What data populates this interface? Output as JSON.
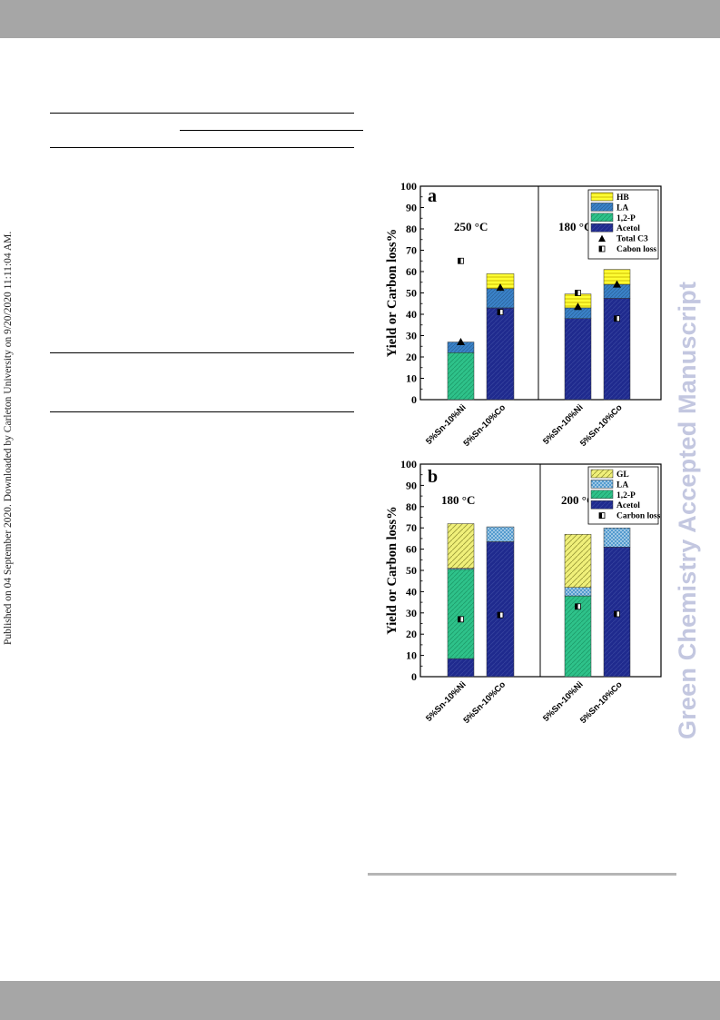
{
  "side_text": {
    "published": "Published on 04 September 2020. Downloaded by Carleton University on 9/20/2020 11:11:04 AM.",
    "watermark": "Green Chemistry Accepted Manuscript"
  },
  "colors": {
    "HB": "#ffff33",
    "LA": "#3a82c8",
    "12P": "#2ec28a",
    "Acetol": "#1f2a8e",
    "GL": "#f0f07a",
    "band": "#a6a6a6",
    "watermark": "#c3c7e0"
  },
  "chart_data": [
    {
      "type": "bar",
      "panel_label": "a",
      "ylabel": "Yield or Carbon loss%",
      "ylim": [
        0,
        100
      ],
      "yticks": [
        "0",
        "10",
        "20",
        "30",
        "40",
        "50",
        "60",
        "70",
        "80",
        "90",
        "100"
      ],
      "stacked": true,
      "groups": [
        {
          "temperature": "250 °C",
          "categories": [
            "5%Sn-10%Ni",
            "5%Sn-10%Co"
          ],
          "series": [
            {
              "name": "Acetol",
              "values": [
                0,
                43
              ]
            },
            {
              "name": "1,2-P",
              "values": [
                22,
                0
              ]
            },
            {
              "name": "LA",
              "values": [
                5,
                9
              ]
            },
            {
              "name": "HB",
              "values": [
                0,
                7
              ]
            }
          ],
          "markers": [
            {
              "name": "Total C3",
              "values": [
                27,
                52.5
              ]
            },
            {
              "name": "Cabon loss",
              "values": [
                65,
                41
              ]
            }
          ]
        },
        {
          "temperature": "180 °C",
          "categories": [
            "5%Sn-10%Ni",
            "5%Sn-10%Co"
          ],
          "series": [
            {
              "name": "Acetol",
              "values": [
                38,
                47.5
              ]
            },
            {
              "name": "1,2-P",
              "values": [
                0,
                0
              ]
            },
            {
              "name": "LA",
              "values": [
                5,
                6.5
              ]
            },
            {
              "name": "HB",
              "values": [
                6.5,
                7
              ]
            }
          ],
          "markers": [
            {
              "name": "Total C3",
              "values": [
                43.5,
                54
              ]
            },
            {
              "name": "Cabon loss",
              "values": [
                50,
                38
              ]
            }
          ]
        }
      ],
      "legend": {
        "position": "top-right",
        "items": [
          {
            "label": "HB",
            "kind": "bar"
          },
          {
            "label": "LA",
            "kind": "bar"
          },
          {
            "label": "1,2-P",
            "kind": "bar"
          },
          {
            "label": "Acetol",
            "kind": "bar"
          },
          {
            "label": "Total C3",
            "kind": "triangle"
          },
          {
            "label": "Cabon loss",
            "kind": "halfsquare"
          }
        ]
      }
    },
    {
      "type": "bar",
      "panel_label": "b",
      "ylabel": "Yield or Carbon loss%",
      "ylim": [
        0,
        100
      ],
      "yticks": [
        "0",
        "10",
        "20",
        "30",
        "40",
        "50",
        "60",
        "70",
        "80",
        "90",
        "100"
      ],
      "stacked": true,
      "groups": [
        {
          "temperature": "180 °C",
          "categories": [
            "5%Sn-10%Ni",
            "5%Sn-10%Co"
          ],
          "series": [
            {
              "name": "Acetol",
              "values": [
                8.5,
                63.5
              ]
            },
            {
              "name": "1,2-P",
              "values": [
                42,
                0
              ]
            },
            {
              "name": "LA",
              "values": [
                0.5,
                7
              ]
            },
            {
              "name": "GL",
              "values": [
                21,
                0
              ]
            }
          ],
          "markers": [
            {
              "name": "Carbon loss",
              "values": [
                27,
                29
              ]
            }
          ]
        },
        {
          "temperature": "200 °C",
          "categories": [
            "5%Sn-10%Ni",
            "5%Sn-10%Co"
          ],
          "series": [
            {
              "name": "Acetol",
              "values": [
                0,
                61
              ]
            },
            {
              "name": "1,2-P",
              "values": [
                38,
                0
              ]
            },
            {
              "name": "LA",
              "values": [
                4,
                9
              ]
            },
            {
              "name": "GL",
              "values": [
                25,
                0
              ]
            }
          ],
          "markers": [
            {
              "name": "Carbon loss",
              "values": [
                33,
                29.5
              ]
            }
          ]
        }
      ],
      "legend": {
        "position": "top-right",
        "items": [
          {
            "label": "GL",
            "kind": "bar"
          },
          {
            "label": "LA",
            "kind": "bar"
          },
          {
            "label": "1,2-P",
            "kind": "bar"
          },
          {
            "label": "Acetol",
            "kind": "bar"
          },
          {
            "label": "Carbon loss",
            "kind": "halfsquare"
          }
        ]
      }
    }
  ]
}
